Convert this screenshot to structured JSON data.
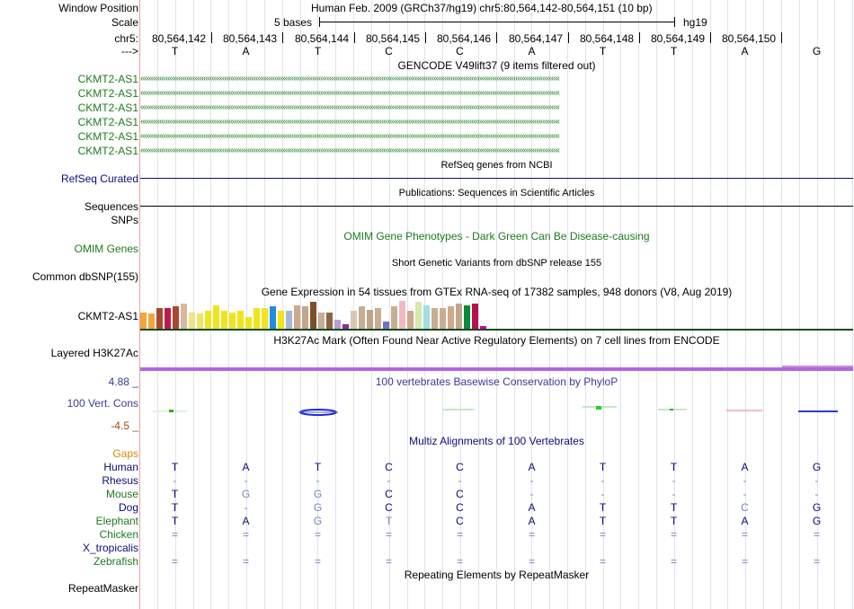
{
  "header": {
    "window_position_label": "Window Position",
    "window_position_value": "Human Feb. 2009 (GRCh37/hg19)   chr5:80,564,142-80,564,151 (10 bp)",
    "scale_label": "Scale",
    "scale_value": "5 bases",
    "scale_assembly": "hg19",
    "chrom_label": "chr5:",
    "strand_label": "--->"
  },
  "ruler": {
    "positions": [
      "80,564,142",
      "80,564,143",
      "80,564,144",
      "80,564,145",
      "80,564,146",
      "80,564,147",
      "80,564,148",
      "80,564,149",
      "80,564,150"
    ],
    "bases": [
      "T",
      "A",
      "T",
      "C",
      "C",
      "A",
      "T",
      "T",
      "A",
      "G"
    ]
  },
  "tracks": {
    "gencode": {
      "title": "GENCODE V49lift37 (9 items filtered out)",
      "items": [
        "CKMT2-AS1",
        "CKMT2-AS1",
        "CKMT2-AS1",
        "CKMT2-AS1",
        "CKMT2-AS1",
        "CKMT2-AS1"
      ],
      "color": "#1f7a1f"
    },
    "refseq": {
      "label": "RefSeq Curated",
      "title": "RefSeq genes from NCBI",
      "color": "#0c0c78"
    },
    "publications": {
      "title": "Publications: Sequences in Scientific Articles",
      "label": "Sequences"
    },
    "snps": {
      "label": "SNPs"
    },
    "omim": {
      "label": "OMIM Genes",
      "title": "OMIM Gene Phenotypes - Dark Green Can Be Disease-causing",
      "color": "#1f7a1f"
    },
    "dbsnp": {
      "title": "Short Genetic Variants from dbSNP release 155",
      "label": "Common dbSNP(155)"
    },
    "gtex": {
      "title": "Gene Expression in 54 tissues from GTEx RNA-seq of 17382 samples, 948 donors (V8, Aug 2019)",
      "label": "CKMT2-AS1",
      "bars": [
        {
          "c": "#f4a53e",
          "v": 0.55
        },
        {
          "c": "#f4a53e",
          "v": 0.5
        },
        {
          "c": "#a8482d",
          "v": 0.7
        },
        {
          "c": "#c0184b",
          "v": 0.7
        },
        {
          "c": "#a8482d",
          "v": 0.75
        },
        {
          "c": "#d9b8a0",
          "v": 0.85
        },
        {
          "c": "#ede38a",
          "v": 0.55
        },
        {
          "c": "#efe36a",
          "v": 0.5
        },
        {
          "c": "#f0e41c",
          "v": 0.6
        },
        {
          "c": "#f0e41c",
          "v": 0.8
        },
        {
          "c": "#f0e41c",
          "v": 0.6
        },
        {
          "c": "#f0e41c",
          "v": 0.55
        },
        {
          "c": "#f0e41c",
          "v": 0.6
        },
        {
          "c": "#f0e41c",
          "v": 0.4
        },
        {
          "c": "#f0e41c",
          "v": 0.7
        },
        {
          "c": "#f0e41c",
          "v": 0.7
        },
        {
          "c": "#1f8fda",
          "v": 0.75
        },
        {
          "c": "#f0e41c",
          "v": 0.6
        },
        {
          "c": "#a6b8d6",
          "v": 0.6
        },
        {
          "c": "#cfa88d",
          "v": 0.8
        },
        {
          "c": "#c2a68e",
          "v": 0.75
        },
        {
          "c": "#7d4e2a",
          "v": 0.9
        },
        {
          "c": "#c8ad93",
          "v": 0.55
        },
        {
          "c": "#8c6444",
          "v": 0.55
        },
        {
          "c": "#b5a0d0",
          "v": 0.3
        },
        {
          "c": "#8a2d92",
          "v": 0.15
        },
        {
          "c": "#d6c8b3",
          "v": 0.6
        },
        {
          "c": "#c8ad93",
          "v": 0.75
        },
        {
          "c": "#bfa58c",
          "v": 0.65
        },
        {
          "c": "#c8ad93",
          "v": 0.7
        },
        {
          "c": "#6b74c4",
          "v": 0.25
        },
        {
          "c": "#c8ad93",
          "v": 0.75
        },
        {
          "c": "#f4b8c2",
          "v": 0.95
        },
        {
          "c": "#cfa88d",
          "v": 0.6
        },
        {
          "c": "#d4e9ac",
          "v": 0.9
        },
        {
          "c": "#9fe0e0",
          "v": 0.8
        },
        {
          "c": "#c8ad93",
          "v": 0.7
        },
        {
          "c": "#c8ad93",
          "v": 0.7
        },
        {
          "c": "#cfa88d",
          "v": 0.75
        },
        {
          "c": "#c2a68e",
          "v": 0.85
        },
        {
          "c": "#0a8a3c",
          "v": 0.8
        },
        {
          "c": "#b8124a",
          "v": 0.85
        },
        {
          "c": "#cc0099",
          "v": 0.08
        }
      ]
    },
    "h3k27ac": {
      "title": "H3K27Ac Mark (Often Found Near Active Regulatory Elements) on 7 cell lines from ENCODE",
      "label": "Layered H3K27Ac",
      "color": "#b266e0"
    },
    "phylop": {
      "title": "100 vertebrates Basewise Conservation by PhyloP",
      "label": "100 Vert. Cons",
      "y_max": "4.88 _",
      "y_min": "-4.5 _",
      "color": "#3a3a9a",
      "min_color": "#a44818"
    },
    "multiz": {
      "title": "Multiz Alignments of 100 Vertebrates",
      "gaps_label": "Gaps",
      "species": [
        {
          "name": "Human",
          "color": "#0c0c78",
          "bases": [
            "T",
            "A",
            "T",
            "C",
            "C",
            "A",
            "T",
            "T",
            "A",
            "G"
          ],
          "dim": []
        },
        {
          "name": "Rhesus",
          "color": "#0c0c78",
          "bases": [
            "-",
            "-",
            "-",
            "-",
            "-",
            "-",
            "-",
            "-",
            "-",
            "-"
          ],
          "dim": []
        },
        {
          "name": "Mouse",
          "color": "#1f7a1f",
          "bases": [
            "T",
            "G",
            "G",
            "C",
            "C",
            "-",
            "-",
            "-",
            "-",
            "-"
          ],
          "dim": [
            1,
            2
          ]
        },
        {
          "name": "Dog",
          "color": "#0c0c78",
          "bases": [
            "T",
            "-",
            "G",
            "C",
            "C",
            "A",
            "T",
            "T",
            "C",
            "G"
          ],
          "dim": [
            2,
            8
          ]
        },
        {
          "name": "Elephant",
          "color": "#1f7a1f",
          "bases": [
            "T",
            "A",
            "G",
            "T",
            "C",
            "A",
            "T",
            "T",
            "A",
            "G"
          ],
          "dim": [
            2,
            3
          ]
        },
        {
          "name": "Chicken",
          "color": "#1f7a1f",
          "bases": [
            "=",
            "=",
            "=",
            "=",
            "=",
            "=",
            "=",
            "=",
            "=",
            "="
          ],
          "dim": []
        },
        {
          "name": "X_tropicalis",
          "color": "#0c0c78",
          "bases": [
            "",
            "",
            "",
            "",
            "",
            "",
            "",
            "",
            "",
            ""
          ],
          "dim": []
        },
        {
          "name": "Zebrafish",
          "color": "#1f7a1f",
          "bases": [
            "=",
            "=",
            "=",
            "=",
            "=",
            "=",
            "=",
            "=",
            "=",
            "="
          ],
          "dim": []
        }
      ]
    },
    "repeatmasker": {
      "title": "Repeating Elements by RepeatMasker",
      "label": "RepeatMasker"
    }
  },
  "colors": {
    "gaps": "#d98d00",
    "dim_base": "#7a84b8",
    "label_blue": "#0c0c78",
    "label_green": "#1f7a1f"
  }
}
